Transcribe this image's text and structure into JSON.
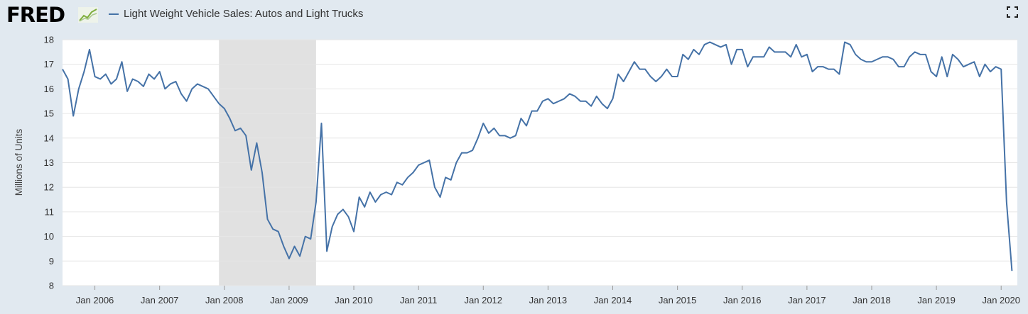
{
  "header": {
    "logo_text": "FRED",
    "series_title": "Light Weight Vehicle Sales: Autos and Light Trucks"
  },
  "icons": {
    "logo_mark": "chart-line-icon",
    "fullscreen": "fullscreen-icon"
  },
  "colors": {
    "line": "#4572a7",
    "recession": "#e1e1e1",
    "page_bg": "#e1e9f0",
    "plot_bg": "#ffffff"
  },
  "chart_data": {
    "type": "line",
    "title": "Light Weight Vehicle Sales: Autos and Light Trucks",
    "ylabel": "Millions of Units",
    "xlabel": "",
    "ylim": [
      8,
      18
    ],
    "y_ticks": [
      "8",
      "9",
      "10",
      "11",
      "12",
      "13",
      "14",
      "15",
      "16",
      "17",
      "18"
    ],
    "x_ticks": [
      "Jan 2006",
      "Jan 2007",
      "Jan 2008",
      "Jan 2009",
      "Jan 2010",
      "Jan 2011",
      "Jan 2012",
      "Jan 2013",
      "Jan 2014",
      "Jan 2015",
      "Jan 2016",
      "Jan 2017",
      "Jan 2018",
      "Jan 2019",
      "Jan 2020"
    ],
    "x_range": [
      "2005-07",
      "2020-04"
    ],
    "grid": true,
    "recession_shading": [
      {
        "start": "2007-12",
        "end": "2009-06"
      }
    ],
    "series": [
      {
        "name": "Light Weight Vehicle Sales: Autos and Light Trucks",
        "start": "2005-07",
        "frequency": "monthly",
        "values": [
          16.8,
          16.4,
          14.9,
          16.0,
          16.7,
          17.6,
          16.5,
          16.4,
          16.6,
          16.2,
          16.4,
          17.1,
          15.9,
          16.4,
          16.3,
          16.1,
          16.6,
          16.4,
          16.7,
          16.0,
          16.2,
          16.3,
          15.8,
          15.5,
          16.0,
          16.2,
          16.1,
          16.0,
          15.7,
          15.4,
          15.2,
          14.8,
          14.3,
          14.4,
          14.1,
          12.7,
          13.8,
          12.6,
          10.7,
          10.3,
          10.2,
          9.6,
          9.1,
          9.6,
          9.2,
          10.0,
          9.9,
          11.4,
          14.6,
          9.4,
          10.4,
          10.9,
          11.1,
          10.8,
          10.2,
          11.6,
          11.2,
          11.8,
          11.4,
          11.7,
          11.8,
          11.7,
          12.2,
          12.1,
          12.4,
          12.6,
          12.9,
          13.0,
          13.1,
          12.0,
          11.6,
          12.4,
          12.3,
          13.0,
          13.4,
          13.4,
          13.5,
          14.0,
          14.6,
          14.2,
          14.4,
          14.1,
          14.1,
          14.0,
          14.1,
          14.8,
          14.5,
          15.1,
          15.1,
          15.5,
          15.6,
          15.4,
          15.5,
          15.6,
          15.8,
          15.7,
          15.5,
          15.5,
          15.3,
          15.7,
          15.4,
          15.2,
          15.6,
          16.6,
          16.3,
          16.7,
          17.1,
          16.8,
          16.8,
          16.5,
          16.3,
          16.5,
          16.8,
          16.5,
          16.5,
          17.4,
          17.2,
          17.6,
          17.4,
          17.8,
          17.9,
          17.8,
          17.7,
          17.8,
          17.0,
          17.6,
          17.6,
          16.9,
          17.3,
          17.3,
          17.3,
          17.7,
          17.5,
          17.5,
          17.5,
          17.3,
          17.8,
          17.3,
          17.4,
          16.7,
          16.9,
          16.9,
          16.8,
          16.8,
          16.6,
          17.9,
          17.8,
          17.4,
          17.2,
          17.1,
          17.1,
          17.2,
          17.3,
          17.3,
          17.2,
          16.9,
          16.9,
          17.3,
          17.5,
          17.4,
          17.4,
          16.7,
          16.5,
          17.3,
          16.5,
          17.4,
          17.2,
          16.9,
          17.0,
          17.1,
          16.5,
          17.0,
          16.7,
          16.9,
          16.8,
          11.4,
          8.6
        ]
      }
    ]
  }
}
